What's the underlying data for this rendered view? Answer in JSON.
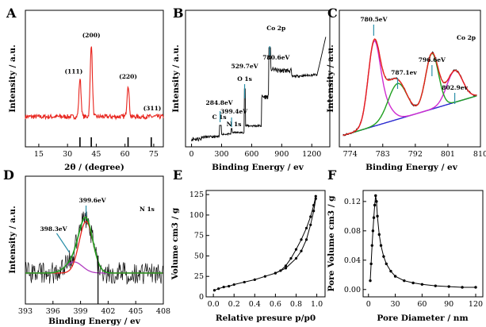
{
  "chart_data": [
    {
      "panel": "A",
      "type": "line",
      "xlabel": "2θ / (degree)",
      "ylabel": "Intensity / a.u.",
      "xlim": [
        8,
        80
      ],
      "xticks": [
        15,
        30,
        45,
        60,
        75
      ],
      "series_color": "#e8231c",
      "peaks": [
        {
          "x": 36.5,
          "y": 0.62,
          "label": "(111)"
        },
        {
          "x": 42.4,
          "y": 1.0,
          "label": "(200)"
        },
        {
          "x": 61.6,
          "y": 0.55,
          "label": "(220)"
        },
        {
          "x": 74.2,
          "y": 0.2,
          "label": "(311)"
        }
      ],
      "baseline": 0.2,
      "reference_lines": [
        36.5,
        42.4,
        61.6,
        73.7
      ]
    },
    {
      "panel": "B",
      "type": "line",
      "xlabel": "Binding Energy / ev",
      "ylabel": "Intensity / a.u.",
      "xlim": [
        -60,
        1380
      ],
      "xticks": [
        0,
        300,
        600,
        900,
        1200
      ],
      "annotations": [
        {
          "x": 284.8,
          "text": "284.8eV",
          "line2": "C 1s"
        },
        {
          "x": 399.4,
          "text": "399.4eV",
          "line2": "N 1s"
        },
        {
          "x": 529.7,
          "text": "529.7eV",
          "line2": "O 1s"
        },
        {
          "x": 780.6,
          "text": "Co 2p",
          "line2": "780.6eV"
        }
      ]
    },
    {
      "panel": "C",
      "type": "line",
      "title": "Co 2p",
      "xlabel": "Binding Energy / ev",
      "ylabel": "Intensity / a.u.",
      "xlim": [
        771,
        810
      ],
      "xticks": [
        774,
        783,
        792,
        801,
        810
      ],
      "peaks": [
        {
          "x": 780.5,
          "label": "780.5eV"
        },
        {
          "x": 787.1,
          "label": "787.1ev"
        },
        {
          "x": 796.6,
          "label": "796.6eV"
        },
        {
          "x": 802.9,
          "label": "802.9ev"
        }
      ],
      "colors": {
        "raw": "#1a1a1a",
        "fit": "#e8231c",
        "c1": "#d02bd0",
        "c2": "#20a020",
        "bg": "#2a2ad0"
      }
    },
    {
      "panel": "D",
      "type": "line",
      "title": "N 1s",
      "xlabel": "Binding Energy / ev",
      "ylabel": "Intensity / a.u.",
      "xlim": [
        393,
        408
      ],
      "xticks": [
        393,
        396,
        399,
        402,
        405,
        408
      ],
      "peaks": [
        {
          "x": 399.6,
          "label": "399.6eV"
        },
        {
          "x": 398.3,
          "label": "398.3eV"
        }
      ],
      "reference_line": 400.9
    },
    {
      "panel": "E",
      "type": "line",
      "xlabel": "Relative presure p/p0",
      "ylabel": "Volume cm3 / g",
      "xlim": [
        -0.07,
        1.08
      ],
      "ylim": [
        0,
        130
      ],
      "xticks": [
        0.0,
        0.2,
        0.4,
        0.6,
        0.8,
        1.0
      ],
      "yticks": [
        0,
        25,
        50,
        75,
        100,
        125
      ],
      "series": [
        {
          "type": "adsorption",
          "x": [
            0.01,
            0.05,
            0.1,
            0.15,
            0.2,
            0.3,
            0.4,
            0.5,
            0.6,
            0.7,
            0.8,
            0.85,
            0.9,
            0.94,
            0.97,
            0.99
          ],
          "values": [
            8,
            10,
            12,
            13,
            15,
            18,
            21,
            25,
            29,
            35,
            47,
            56,
            70,
            88,
            105,
            120
          ]
        },
        {
          "type": "desorption",
          "x": [
            0.99,
            0.97,
            0.94,
            0.9,
            0.85,
            0.8,
            0.75,
            0.7,
            0.65,
            0.6
          ],
          "values": [
            123,
            112,
            98,
            84,
            70,
            58,
            47,
            38,
            32,
            29
          ]
        }
      ]
    },
    {
      "panel": "F",
      "type": "line",
      "xlabel": "Pore Diameter / nm",
      "ylabel": "Pore Volume cm3 / g",
      "xlim": [
        -6,
        128
      ],
      "ylim": [
        -0.01,
        0.135
      ],
      "xticks": [
        0,
        30,
        60,
        90,
        120
      ],
      "yticks": [
        0.0,
        0.04,
        0.08,
        0.12
      ],
      "series": [
        {
          "x": [
            2,
            3,
            4,
            5,
            6,
            7,
            8,
            9,
            10,
            12,
            14,
            17,
            20,
            25,
            30,
            40,
            50,
            60,
            75,
            90,
            105,
            120
          ],
          "values": [
            0.012,
            0.035,
            0.06,
            0.08,
            0.098,
            0.115,
            0.128,
            0.12,
            0.1,
            0.075,
            0.06,
            0.045,
            0.035,
            0.025,
            0.018,
            0.012,
            0.009,
            0.007,
            0.005,
            0.004,
            0.003,
            0.003
          ]
        }
      ]
    }
  ],
  "labels": {
    "panels": [
      "A",
      "B",
      "C",
      "D",
      "E",
      "F"
    ],
    "a_x": "2θ / (degree)",
    "a_y": "Intensity / a.u.",
    "a_peaks": [
      "(111)",
      "(200)",
      "(220)",
      "(311)"
    ],
    "b_x": "Binding Energy / ev",
    "b_y": "Intensity / a.u.",
    "c_x": "Binding Energy / ev",
    "c_y": "Intensity / a.u.",
    "c_title": "Co 2p",
    "d_x": "Binding Energy / ev",
    "d_y": "Intensity / a.u.",
    "d_title": "N 1s",
    "e_x": "Relative presure p/p0",
    "e_y": "Volume cm3 / g",
    "f_x": "Pore Diameter / nm",
    "f_y": "Pore Volume cm3 / g"
  }
}
